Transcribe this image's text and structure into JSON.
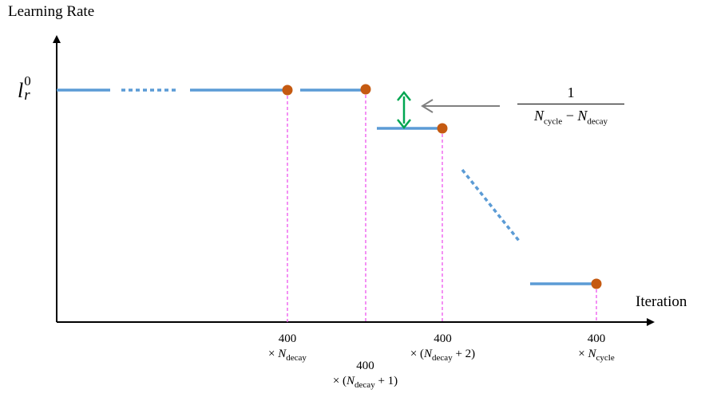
{
  "axes": {
    "y_label": "Learning Rate",
    "x_label": "Iteration"
  },
  "y_tick": {
    "symbol": "l",
    "sub": "r",
    "sup": "0"
  },
  "x_ticks": [
    {
      "number": "400",
      "line1_prefix": "× ",
      "var": "N",
      "sub": "decay",
      "suffix": ""
    },
    {
      "number": "400",
      "line1_prefix": "× (",
      "var": "N",
      "sub": "decay",
      "suffix": " + 1)"
    },
    {
      "number": "400",
      "line1_prefix": "× (",
      "var": "N",
      "sub": "decay",
      "suffix": " + 2)"
    },
    {
      "number": "400",
      "line1_prefix": "× ",
      "var": "N",
      "sub": "cycle",
      "suffix": ""
    }
  ],
  "annotation": {
    "numerator": "1",
    "var1": "N",
    "sub1": "cycle",
    "minus": " − ",
    "var2": "N",
    "sub2": "decay"
  },
  "colors": {
    "segment": "#5b9bd5",
    "point": "#c55a11",
    "guide": "#ee55ee",
    "step_arrow": "#00a651",
    "pointer_arrow": "#808080",
    "axis": "#000000"
  }
}
